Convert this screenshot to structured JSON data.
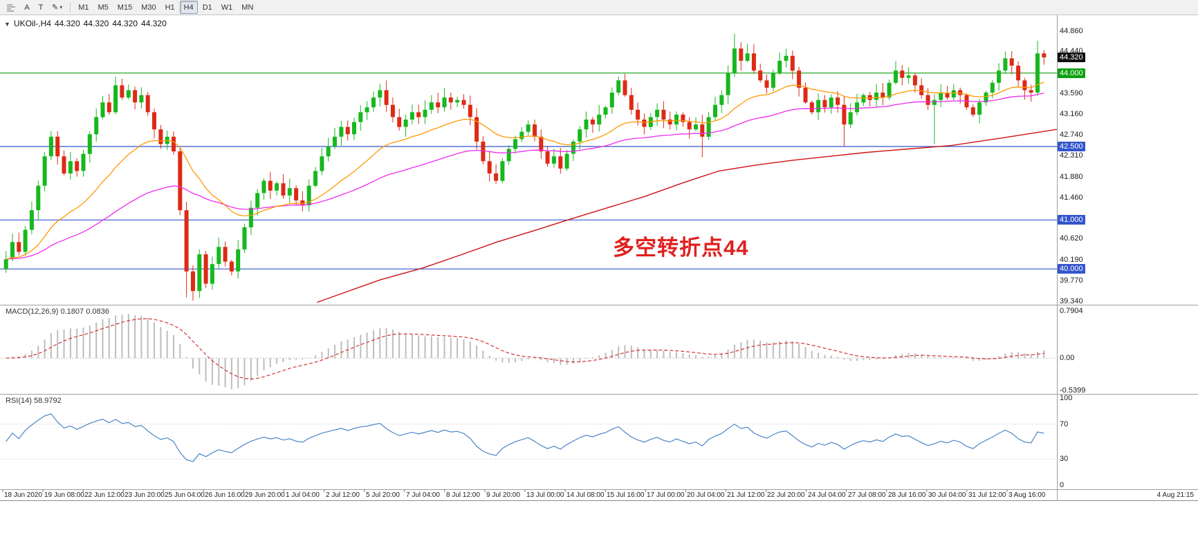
{
  "toolbar": {
    "tool_a_label": "A",
    "tool_t_label": "T",
    "timeframes": [
      "M1",
      "M5",
      "M15",
      "M30",
      "H1",
      "H4",
      "D1",
      "W1",
      "MN"
    ],
    "active_timeframe": "H4"
  },
  "quote": {
    "dropdown": "▼",
    "symbol": "UKOil-,H4",
    "values": [
      "44.320",
      "44.320",
      "44.320",
      "44.320"
    ]
  },
  "panels": {
    "macd_name": "MACD(12,26,9)",
    "macd_value": "0.1807",
    "macd_signal": "0.0836",
    "rsi_name": "RSI(14)",
    "rsi_value": "58.9792"
  },
  "annotation": {
    "text": "多空转折点44",
    "color": "#e02020"
  },
  "price_scale": {
    "tick_labels": [
      "44.860",
      "44.440",
      "43.590",
      "43.160",
      "42.740",
      "42.310",
      "41.880",
      "41.460",
      "40.620",
      "40.190",
      "39.770",
      "39.340"
    ],
    "badges": [
      {
        "value": "44.320",
        "bg": "#111111"
      },
      {
        "value": "44.000",
        "bg": "#0fa00f"
      },
      {
        "value": "42.500",
        "bg": "#3355cc"
      },
      {
        "value": "41.000",
        "bg": "#3355cc"
      },
      {
        "value": "40.000",
        "bg": "#3355cc"
      }
    ]
  },
  "macd_scale": {
    "labels": [
      {
        "text": "0.7904",
        "value": 0.7904
      },
      {
        "text": "0.00",
        "value": 0
      },
      {
        "text": "-0.5399",
        "value": -0.5399
      }
    ]
  },
  "rsi_scale": {
    "labels": [
      {
        "text": "100",
        "value": 100
      },
      {
        "text": "70",
        "value": 70
      },
      {
        "text": "30",
        "value": 30
      },
      {
        "text": "0",
        "value": 0
      }
    ]
  },
  "time_scale": {
    "current": "4 Aug 21:15"
  },
  "chart_data": [
    {
      "type": "candlestick",
      "title": "UKOil-,H4",
      "symbol": "UKOil-",
      "timeframe": "H4",
      "current_price": 44.32,
      "ylim": [
        39.27,
        45.18
      ],
      "up_color": "#16b81e",
      "down_color": "#dd2a16",
      "open_first": 40.0,
      "closes": [
        40.2,
        40.55,
        40.35,
        40.8,
        41.2,
        41.7,
        42.3,
        42.7,
        42.3,
        41.95,
        42.2,
        42.0,
        42.35,
        42.75,
        43.1,
        43.4,
        43.2,
        43.75,
        43.5,
        43.65,
        43.4,
        43.55,
        43.2,
        42.85,
        42.55,
        42.7,
        42.4,
        41.2,
        39.95,
        39.55,
        40.3,
        39.7,
        40.1,
        40.45,
        40.15,
        39.95,
        40.4,
        40.85,
        41.25,
        41.55,
        41.8,
        41.6,
        41.75,
        41.5,
        41.65,
        41.4,
        41.3,
        41.7,
        42.0,
        42.3,
        42.5,
        42.7,
        42.9,
        42.75,
        43.0,
        43.2,
        43.3,
        43.5,
        43.65,
        43.35,
        43.1,
        42.9,
        43.05,
        43.2,
        43.1,
        43.25,
        43.4,
        43.3,
        43.5,
        43.4,
        43.45,
        43.35,
        43.1,
        42.6,
        42.2,
        41.95,
        41.8,
        42.2,
        42.45,
        42.65,
        42.8,
        42.95,
        42.7,
        42.4,
        42.15,
        42.3,
        42.05,
        42.35,
        42.6,
        42.85,
        43.05,
        42.95,
        43.15,
        43.3,
        43.6,
        43.85,
        43.55,
        43.25,
        43.05,
        42.9,
        43.1,
        43.25,
        43.05,
        42.95,
        43.15,
        43.0,
        42.85,
        42.95,
        42.7,
        43.1,
        43.35,
        43.55,
        44.0,
        44.5,
        44.25,
        44.4,
        44.05,
        43.85,
        43.7,
        44.0,
        44.25,
        44.35,
        44.05,
        43.7,
        43.4,
        43.2,
        43.45,
        43.3,
        43.5,
        43.35,
        42.95,
        43.2,
        43.4,
        43.55,
        43.45,
        43.6,
        43.5,
        43.8,
        44.05,
        43.9,
        43.95,
        43.75,
        43.55,
        43.35,
        43.45,
        43.6,
        43.5,
        43.65,
        43.55,
        43.3,
        43.15,
        43.4,
        43.6,
        43.8,
        44.05,
        44.3,
        44.15,
        43.85,
        43.65,
        43.6,
        44.4,
        44.32
      ],
      "wick_overrides": {
        "28": {
          "low": 39.42
        },
        "108": {
          "low": 42.28
        },
        "113": {
          "high": 44.8
        },
        "130": {
          "low": 42.5
        },
        "144": {
          "low": 42.55
        },
        "160": {
          "high": 44.66
        }
      },
      "hlines": [
        {
          "price": 44.0,
          "color": "#0fa00f"
        },
        {
          "price": 42.5,
          "color": "#3355cc"
        },
        {
          "price": 41.0,
          "color": "#3355cc"
        },
        {
          "price": 40.0,
          "color": "#3355cc"
        }
      ],
      "overlays": [
        {
          "name": "long-term-MA",
          "color": "#cc1111",
          "points": [
            [
              0.3,
              39.32
            ],
            [
              0.33,
              39.55
            ],
            [
              0.36,
              39.78
            ],
            [
              0.4,
              40.02
            ],
            [
              0.435,
              40.28
            ],
            [
              0.47,
              40.55
            ],
            [
              0.505,
              40.78
            ],
            [
              0.54,
              41.02
            ],
            [
              0.575,
              41.25
            ],
            [
              0.61,
              41.48
            ],
            [
              0.645,
              41.75
            ],
            [
              0.68,
              42.0
            ],
            [
              0.715,
              42.12
            ],
            [
              0.75,
              42.22
            ],
            [
              0.785,
              42.3
            ],
            [
              0.82,
              42.38
            ],
            [
              0.86,
              42.45
            ],
            [
              0.9,
              42.52
            ],
            [
              0.95,
              42.68
            ],
            [
              1.0,
              42.85
            ]
          ]
        },
        {
          "name": "EMA-slow",
          "color": "#ef2bef",
          "period": 55
        },
        {
          "name": "EMA-fast",
          "color": "#ff9800",
          "period": 21
        }
      ],
      "x_tick_labels": [
        "18 Jun 2020",
        "19 Jun 08:00",
        "22 Jun 12:00",
        "23 Jun 20:00",
        "25 Jun 04:00",
        "26 Jun 16:00",
        "29 Jun 20:00",
        "1 Jul 04:00",
        "2 Jul 12:00",
        "5 Jul 20:00",
        "7 Jul 04:00",
        "8 Jul 12:00",
        "9 Jul 20:00",
        "13 Jul 00:00",
        "14 Jul 08:00",
        "15 Jul 16:00",
        "17 Jul 00:00",
        "20 Jul 04:00",
        "21 Jul 12:00",
        "22 Jul 20:00",
        "24 Jul 04:00",
        "27 Jul 08:00",
        "28 Jul 16:00",
        "30 Jul 04:00",
        "31 Jul 12:00",
        "3 Aug 16:00"
      ]
    },
    {
      "type": "bar",
      "name": "MACD(12,26,9)",
      "note": "histogram = MACD line computed from closes; red dashed = signal",
      "current_values": [
        0.1807,
        0.0836
      ],
      "ylim": [
        -0.5399,
        0.7904
      ],
      "histogram_color": "#bdbdbd",
      "signal_color": "#d43030"
    },
    {
      "type": "line",
      "name": "RSI(14)",
      "current_value": 58.9792,
      "ylim": [
        0,
        100
      ],
      "levels": [
        70,
        30
      ],
      "color": "#4a85c8"
    }
  ]
}
